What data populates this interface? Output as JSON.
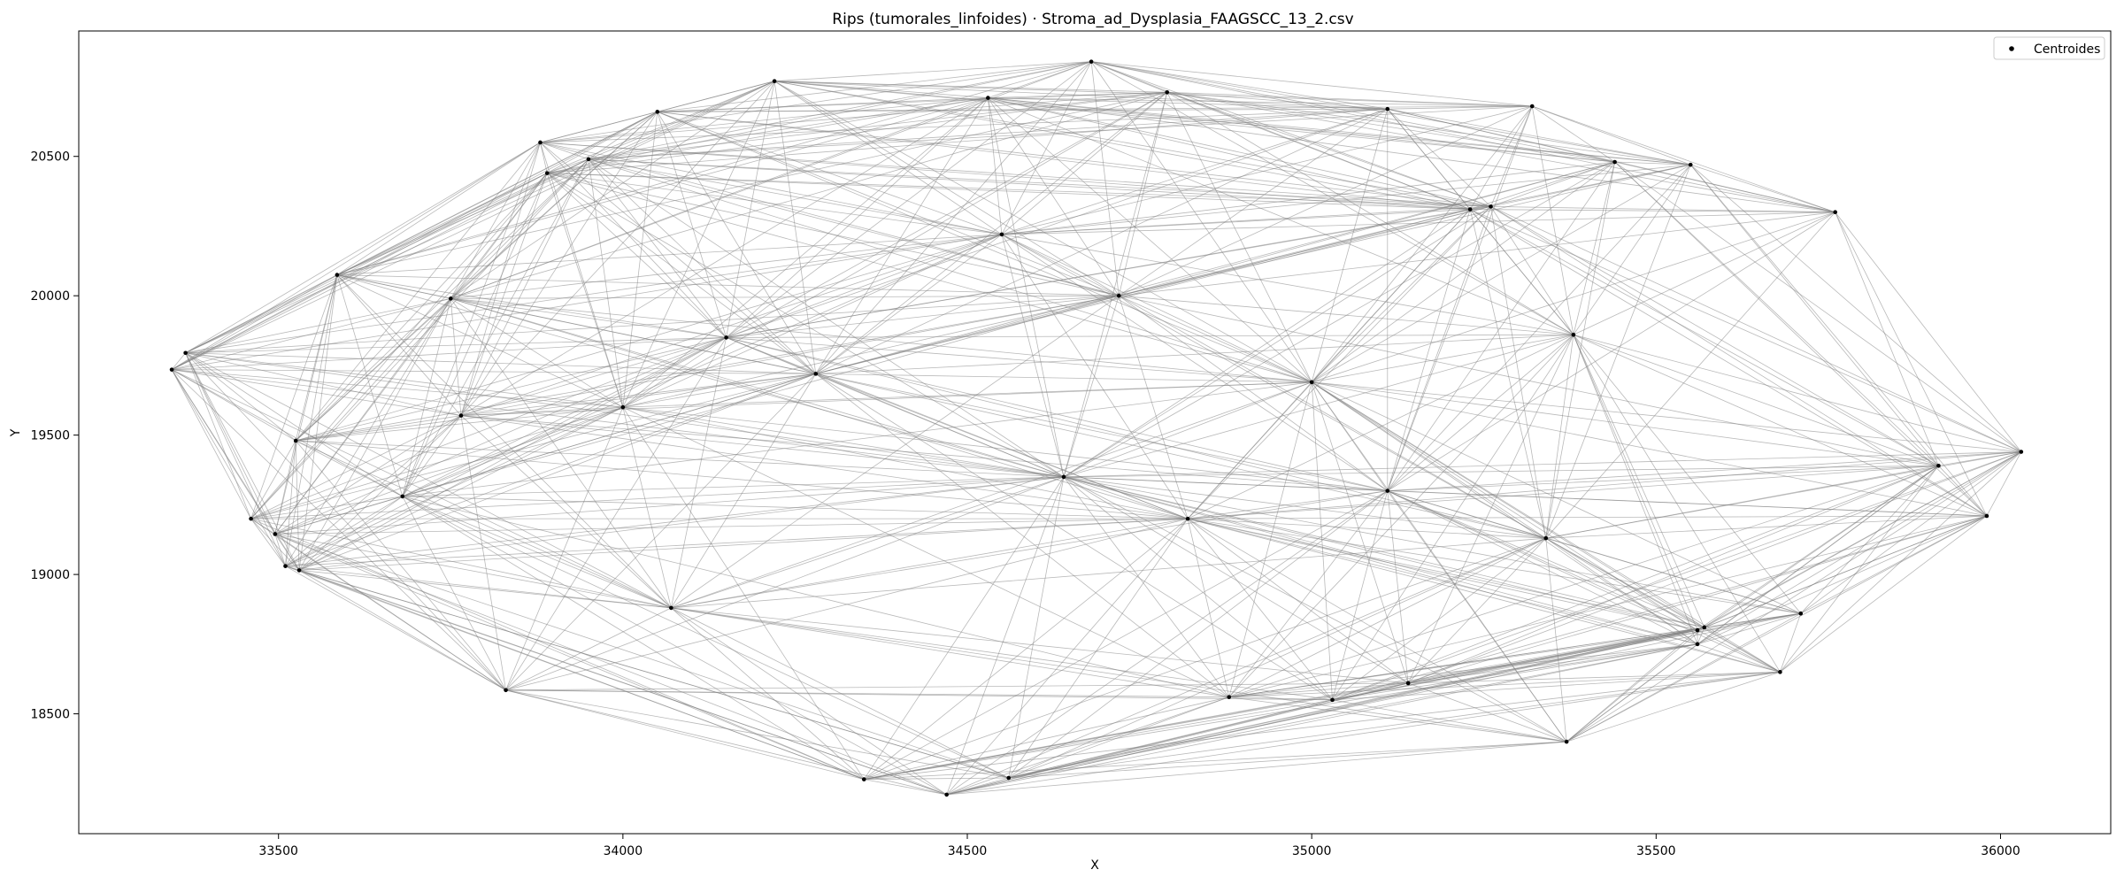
{
  "chart_data": {
    "type": "scatter",
    "title": "Rips (tumorales_linfoides) · Stroma_ad_Dysplasia_FAAGSCC_13_2.csv",
    "xlabel": "X",
    "ylabel": "Y",
    "xlim": [
      33210,
      36160
    ],
    "ylim": [
      18070,
      20950
    ],
    "xticks": [
      33500,
      34000,
      34500,
      35000,
      35500,
      36000
    ],
    "yticks": [
      18500,
      19000,
      19500,
      20000,
      20500
    ],
    "grid": false,
    "legend": {
      "placement": "top-right",
      "entries": [
        "Centroides"
      ]
    },
    "colors": {
      "points": "#000000",
      "edges": "#808080"
    },
    "series": [
      {
        "name": "Centroides",
        "points": [
          [
            33345,
            19735
          ],
          [
            33365,
            19795
          ],
          [
            33460,
            19200
          ],
          [
            33495,
            19145
          ],
          [
            33510,
            19030
          ],
          [
            33525,
            19480
          ],
          [
            33530,
            19015
          ],
          [
            33585,
            20075
          ],
          [
            33680,
            19280
          ],
          [
            33750,
            19990
          ],
          [
            33765,
            19570
          ],
          [
            33830,
            18585
          ],
          [
            33880,
            20550
          ],
          [
            33890,
            20440
          ],
          [
            33950,
            20490
          ],
          [
            34000,
            19600
          ],
          [
            34050,
            20660
          ],
          [
            34070,
            18880
          ],
          [
            34150,
            19850
          ],
          [
            34220,
            20770
          ],
          [
            34280,
            19720
          ],
          [
            34350,
            18265
          ],
          [
            34470,
            18210
          ],
          [
            34530,
            20710
          ],
          [
            34560,
            18270
          ],
          [
            34550,
            20220
          ],
          [
            34640,
            19350
          ],
          [
            34680,
            20840
          ],
          [
            34720,
            20000
          ],
          [
            34790,
            20730
          ],
          [
            34820,
            19200
          ],
          [
            34880,
            18560
          ],
          [
            35000,
            19690
          ],
          [
            35030,
            18550
          ],
          [
            35110,
            20670
          ],
          [
            35110,
            19300
          ],
          [
            35140,
            18610
          ],
          [
            35230,
            20310
          ],
          [
            35260,
            20320
          ],
          [
            35320,
            20680
          ],
          [
            35340,
            19130
          ],
          [
            35370,
            18400
          ],
          [
            35380,
            19860
          ],
          [
            35440,
            20480
          ],
          [
            35550,
            20470
          ],
          [
            35560,
            18800
          ],
          [
            35560,
            18750
          ],
          [
            35570,
            18810
          ],
          [
            35680,
            18650
          ],
          [
            35710,
            18860
          ],
          [
            35760,
            20300
          ],
          [
            35910,
            19390
          ],
          [
            35980,
            19210
          ],
          [
            36030,
            19440
          ]
        ]
      }
    ]
  }
}
